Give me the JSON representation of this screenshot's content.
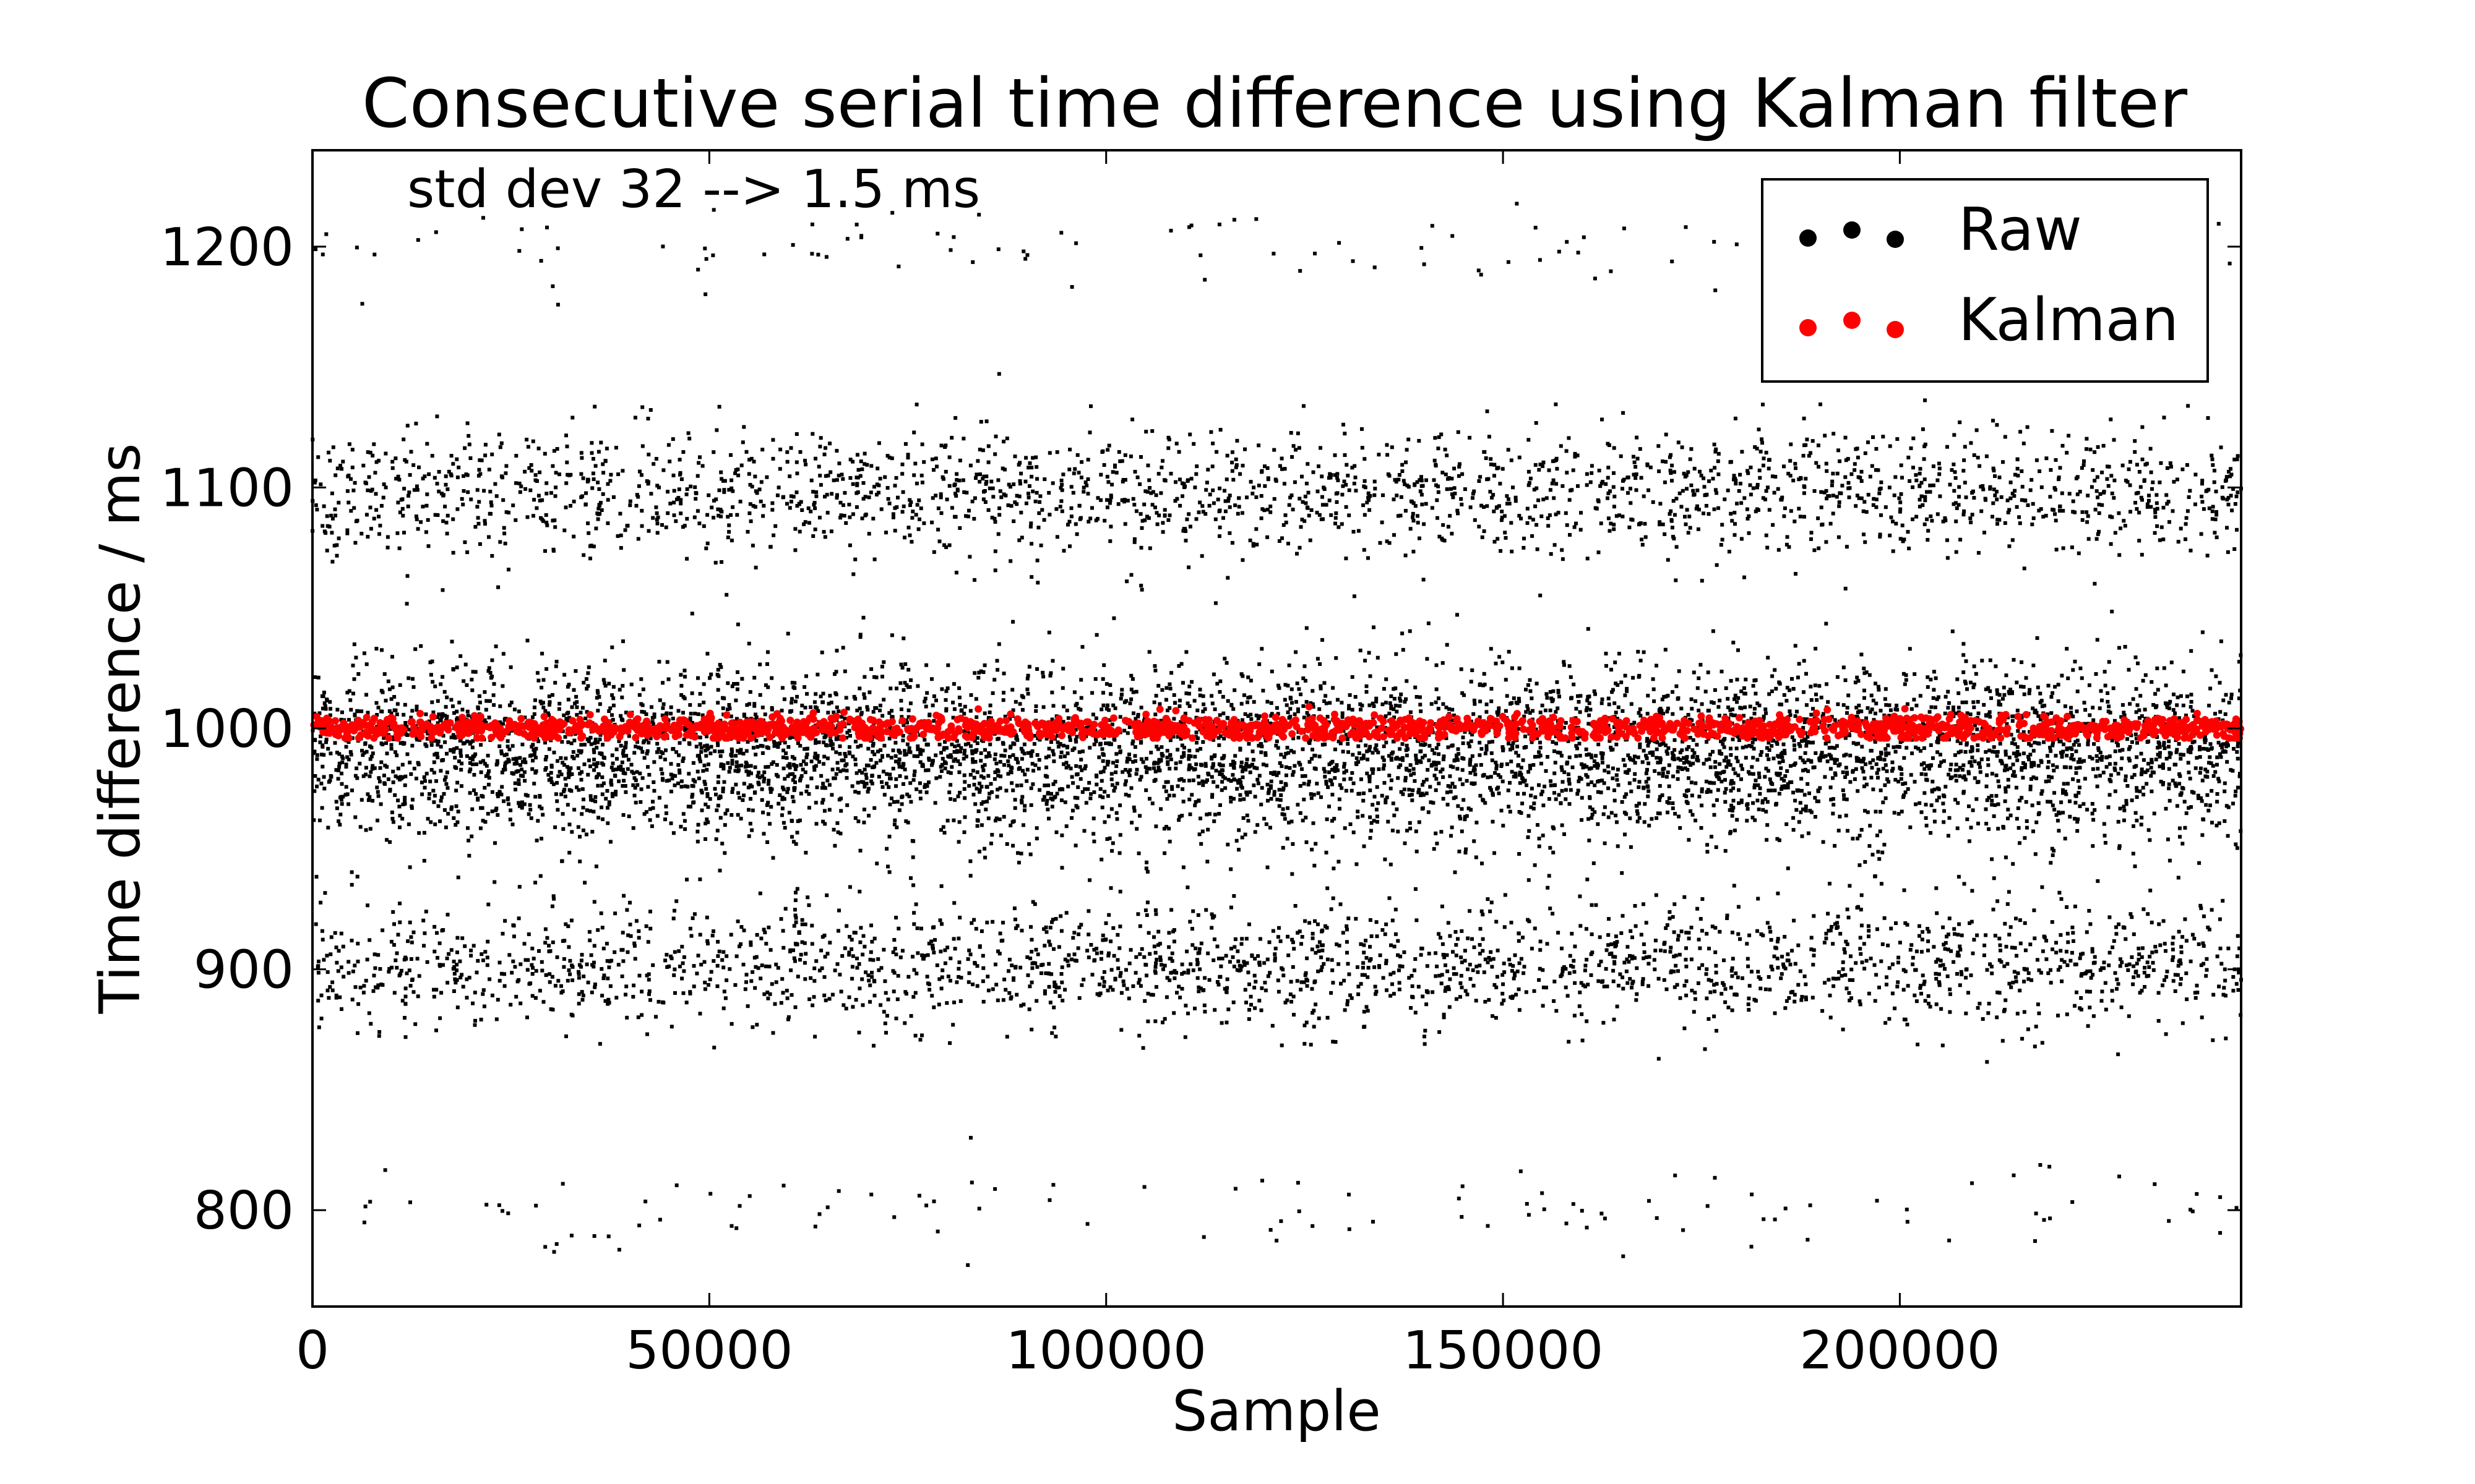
{
  "chart_data": {
    "type": "scatter",
    "title": "Consecutive serial time difference using Kalman filter",
    "xlabel": "Sample",
    "ylabel": "Time difference / ms",
    "annotation": "std dev 32 --> 1.5 ms",
    "xlim": [
      0,
      243000
    ],
    "ylim": [
      760,
      1240
    ],
    "xticks": [
      0,
      50000,
      100000,
      150000,
      200000
    ],
    "xtick_labels": [
      "0",
      "50000",
      "100000",
      "150000",
      "200000"
    ],
    "yticks": [
      800,
      900,
      1000,
      1100,
      1200
    ],
    "ytick_labels": [
      "800",
      "900",
      "1000",
      "1100",
      "1200"
    ],
    "grid": false,
    "legend_position": "top-right",
    "series": [
      {
        "name": "Raw",
        "color": "#000000",
        "clusters": [
          {
            "center": 990,
            "std": 18,
            "count": 6000
          },
          {
            "center": 1098,
            "std": 13,
            "count": 2200
          },
          {
            "center": 902,
            "std": 13,
            "count": 2200
          },
          {
            "center": 1200,
            "std": 10,
            "count": 110
          },
          {
            "center": 800,
            "std": 10,
            "count": 110
          }
        ],
        "x_range": [
          0,
          243000
        ]
      },
      {
        "name": "Kalman",
        "color": "#ff0000",
        "center": 1000,
        "std": 2.5,
        "spread": [
          996,
          1009
        ],
        "count": 1800,
        "x_range": [
          0,
          243000
        ]
      }
    ]
  }
}
